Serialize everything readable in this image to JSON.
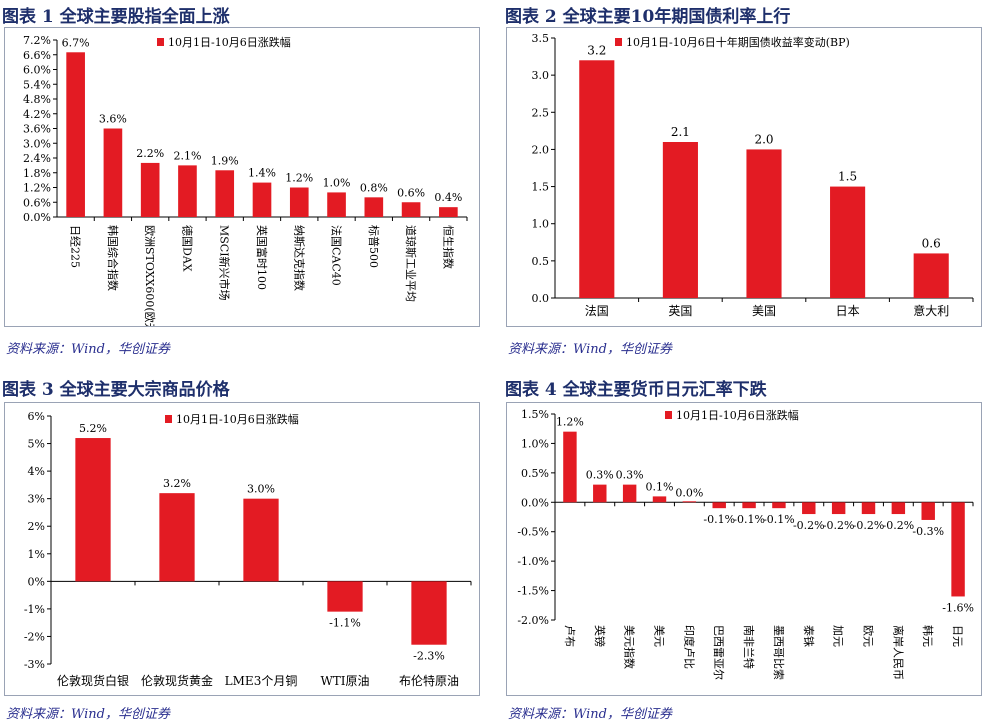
{
  "colors": {
    "bar": "#e31b23",
    "title": "#1e2f6b",
    "source": "#2a2f8f"
  },
  "panels": [
    {
      "title": "图表 1  全球主要股指全面上涨",
      "source": "资料来源：Wind，华创证券",
      "chart_data": {
        "type": "bar",
        "legend": "10月1日-10月6日涨跌幅",
        "categories": [
          "日经225",
          "韩国综合指数",
          "欧洲STOXX600(欧元)",
          "德国DAX",
          "MSCI新兴市场",
          "英国富时100",
          "纳斯达克指数",
          "法国CAC40",
          "标普500",
          "道琼斯工业平均",
          "恒生指数"
        ],
        "values": [
          6.7,
          3.6,
          2.2,
          2.1,
          1.9,
          1.4,
          1.2,
          1.0,
          0.8,
          0.6,
          0.4
        ],
        "value_labels": [
          "6.7%",
          "3.6%",
          "2.2%",
          "2.1%",
          "1.9%",
          "1.4%",
          "1.2%",
          "1.0%",
          "0.8%",
          "0.6%",
          "0.4%"
        ],
        "ylim": [
          0,
          7.2
        ],
        "yticks": [
          "0.0%",
          "0.6%",
          "1.2%",
          "1.8%",
          "2.4%",
          "3.0%",
          "3.6%",
          "4.2%",
          "4.8%",
          "5.4%",
          "6.0%",
          "6.6%",
          "7.2%"
        ]
      }
    },
    {
      "title": "图表 2  全球主要10年期国债利率上行",
      "source": "资料来源：Wind，华创证券",
      "chart_data": {
        "type": "bar",
        "legend": "10月1日-10月6日十年期国债收益率变动(BP)",
        "categories": [
          "法国",
          "英国",
          "美国",
          "日本",
          "意大利"
        ],
        "values": [
          3.2,
          2.1,
          2.0,
          1.5,
          0.6
        ],
        "value_labels": [
          "3.2",
          "2.1",
          "2.0",
          "1.5",
          "0.6"
        ],
        "ylim": [
          0,
          3.5
        ],
        "yticks": [
          "0.0",
          "0.5",
          "1.0",
          "1.5",
          "2.0",
          "2.5",
          "3.0",
          "3.5"
        ]
      }
    },
    {
      "title": "图表 3  全球主要大宗商品价格",
      "source": "资料来源：Wind，华创证券",
      "chart_data": {
        "type": "bar",
        "legend": "10月1日-10月6日涨跌幅",
        "categories": [
          "伦敦现货白银",
          "伦敦现货黄金",
          "LME3个月铜",
          "WTI原油",
          "布伦特原油"
        ],
        "values": [
          5.2,
          3.2,
          3.0,
          -1.1,
          -2.3
        ],
        "value_labels": [
          "5.2%",
          "3.2%",
          "3.0%",
          "-1.1%",
          "-2.3%"
        ],
        "ylim": [
          -3,
          6
        ],
        "yticks": [
          "-3%",
          "-2%",
          "-1%",
          "0%",
          "1%",
          "2%",
          "3%",
          "4%",
          "5%",
          "6%"
        ]
      }
    },
    {
      "title": "图表 4  全球主要货币日元汇率下跌",
      "source": "资料来源：Wind，华创证券",
      "chart_data": {
        "type": "bar",
        "legend": "10月1日-10月6日涨跌幅",
        "categories": [
          "卢布",
          "英镑",
          "美元指数",
          "美元",
          "印度卢比",
          "巴西雷亚尔",
          "南非兰特",
          "墨西哥比索",
          "泰铢",
          "加元",
          "欧元",
          "离岸人民币",
          "韩元",
          "日元"
        ],
        "values": [
          1.2,
          0.3,
          0.3,
          0.1,
          0.0,
          -0.1,
          -0.1,
          -0.1,
          -0.2,
          -0.2,
          -0.2,
          -0.2,
          -0.3,
          -1.6
        ],
        "value_labels": [
          "1.2%",
          "0.3%",
          "0.3%",
          "0.1%",
          "0.0%",
          "-0.1%",
          "-0.1%",
          "-0.1%",
          "-0.2%",
          "-0.2%",
          "-0.2%",
          "-0.2%",
          "-0.3%",
          "-1.6%"
        ],
        "ylim": [
          -2.0,
          1.5
        ],
        "yticks": [
          "-2.0%",
          "-1.5%",
          "-1.0%",
          "-0.5%",
          "0.0%",
          "0.5%",
          "1.0%",
          "1.5%"
        ]
      }
    }
  ]
}
